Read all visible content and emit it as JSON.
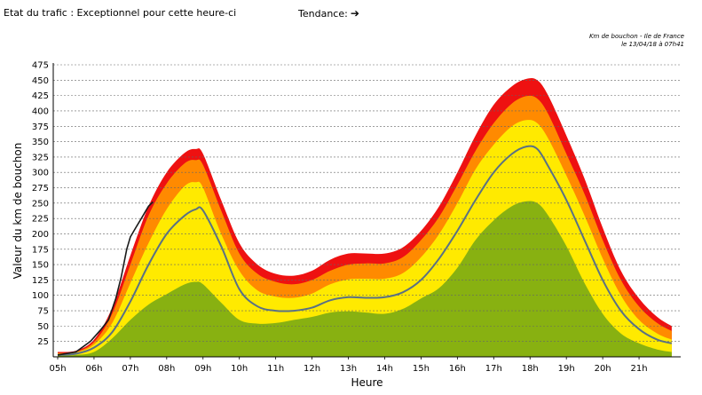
{
  "header": {
    "status_text": "Etat du trafic : Exceptionnel pour cette heure-ci",
    "trend_label": "Tendance:",
    "trend_arrow": "➔"
  },
  "credit": {
    "line1": "Km de bouchon - Ile de France",
    "line2": "le 13/04/18 à 07h41"
  },
  "colors": {
    "red": "#ee1111",
    "orange": "#ff8a00",
    "yellow": "#ffea00",
    "green": "#88b111",
    "average_line": "#5a7184",
    "current_line": "#1a1a1a",
    "grid": "#666666"
  },
  "chart_data": {
    "type": "area",
    "title": "",
    "xlabel": "Heure",
    "ylabel": "Valeur du  km de bouchon",
    "xlim": [
      5,
      22.2
    ],
    "ylim": [
      0,
      475
    ],
    "y_ticks": [
      25,
      50,
      75,
      100,
      125,
      150,
      175,
      200,
      225,
      250,
      275,
      300,
      325,
      350,
      375,
      400,
      425,
      450,
      475
    ],
    "x_ticks": [
      {
        "value": 5,
        "label": "05h"
      },
      {
        "value": 6,
        "label": "06h"
      },
      {
        "value": 7,
        "label": "07h"
      },
      {
        "value": 8,
        "label": "08h"
      },
      {
        "value": 9,
        "label": "09h"
      },
      {
        "value": 10,
        "label": "10h"
      },
      {
        "value": 11,
        "label": "11h"
      },
      {
        "value": 12,
        "label": "12h"
      },
      {
        "value": 13,
        "label": "13h"
      },
      {
        "value": 14,
        "label": "14h"
      },
      {
        "value": 15,
        "label": "15h"
      },
      {
        "value": 16,
        "label": "16h"
      },
      {
        "value": 17,
        "label": "17h"
      },
      {
        "value": 18,
        "label": "18h"
      },
      {
        "value": 19,
        "label": "19h"
      },
      {
        "value": 20,
        "label": "20h"
      },
      {
        "value": 21,
        "label": "21h"
      }
    ],
    "x": [
      5.0,
      5.5,
      6.0,
      6.5,
      7.0,
      7.5,
      8.0,
      8.5,
      8.8,
      9.0,
      9.5,
      10.0,
      10.5,
      11.0,
      11.5,
      12.0,
      12.5,
      13.0,
      13.5,
      14.0,
      14.5,
      15.0,
      15.5,
      16.0,
      16.5,
      17.0,
      17.5,
      17.9,
      18.2,
      18.5,
      19.0,
      19.5,
      20.0,
      20.5,
      21.0,
      21.5,
      21.9
    ],
    "series": [
      {
        "name": "red",
        "values": [
          8,
          10,
          28,
          80,
          165,
          245,
          300,
          332,
          338,
          330,
          255,
          185,
          150,
          135,
          132,
          140,
          158,
          168,
          168,
          168,
          178,
          205,
          245,
          300,
          360,
          410,
          440,
          452,
          450,
          425,
          360,
          290,
          210,
          140,
          95,
          65,
          50
        ]
      },
      {
        "name": "orange",
        "values": [
          6,
          8,
          24,
          70,
          150,
          230,
          282,
          315,
          320,
          312,
          238,
          168,
          135,
          122,
          118,
          125,
          140,
          150,
          152,
          152,
          162,
          190,
          228,
          280,
          335,
          380,
          412,
          424,
          420,
          395,
          330,
          265,
          190,
          125,
          82,
          55,
          42
        ]
      },
      {
        "name": "yellow",
        "values": [
          5,
          7,
          20,
          55,
          120,
          185,
          240,
          278,
          284,
          275,
          200,
          140,
          108,
          98,
          96,
          103,
          118,
          126,
          127,
          127,
          136,
          162,
          200,
          250,
          305,
          345,
          375,
          385,
          380,
          355,
          295,
          230,
          160,
          100,
          60,
          38,
          28
        ]
      },
      {
        "name": "green",
        "values": [
          2,
          3,
          8,
          30,
          60,
          85,
          102,
          118,
          122,
          118,
          88,
          60,
          54,
          55,
          60,
          65,
          72,
          74,
          72,
          70,
          78,
          95,
          112,
          145,
          190,
          222,
          245,
          253,
          250,
          230,
          180,
          120,
          70,
          38,
          22,
          12,
          8
        ]
      },
      {
        "name": "average",
        "values": [
          3,
          5,
          15,
          40,
          90,
          150,
          200,
          230,
          240,
          238,
          180,
          110,
          82,
          75,
          75,
          80,
          92,
          97,
          96,
          97,
          105,
          125,
          160,
          205,
          255,
          300,
          330,
          342,
          338,
          310,
          255,
          190,
          125,
          75,
          45,
          28,
          22
        ]
      },
      {
        "name": "current",
        "x": [
          5.0,
          5.5,
          5.9,
          6.2,
          6.4,
          6.6,
          6.75,
          6.9,
          7.0,
          7.15,
          7.3,
          7.5,
          7.62
        ],
        "values": [
          3,
          8,
          25,
          45,
          60,
          95,
          130,
          175,
          195,
          210,
          225,
          245,
          252
        ]
      }
    ]
  }
}
